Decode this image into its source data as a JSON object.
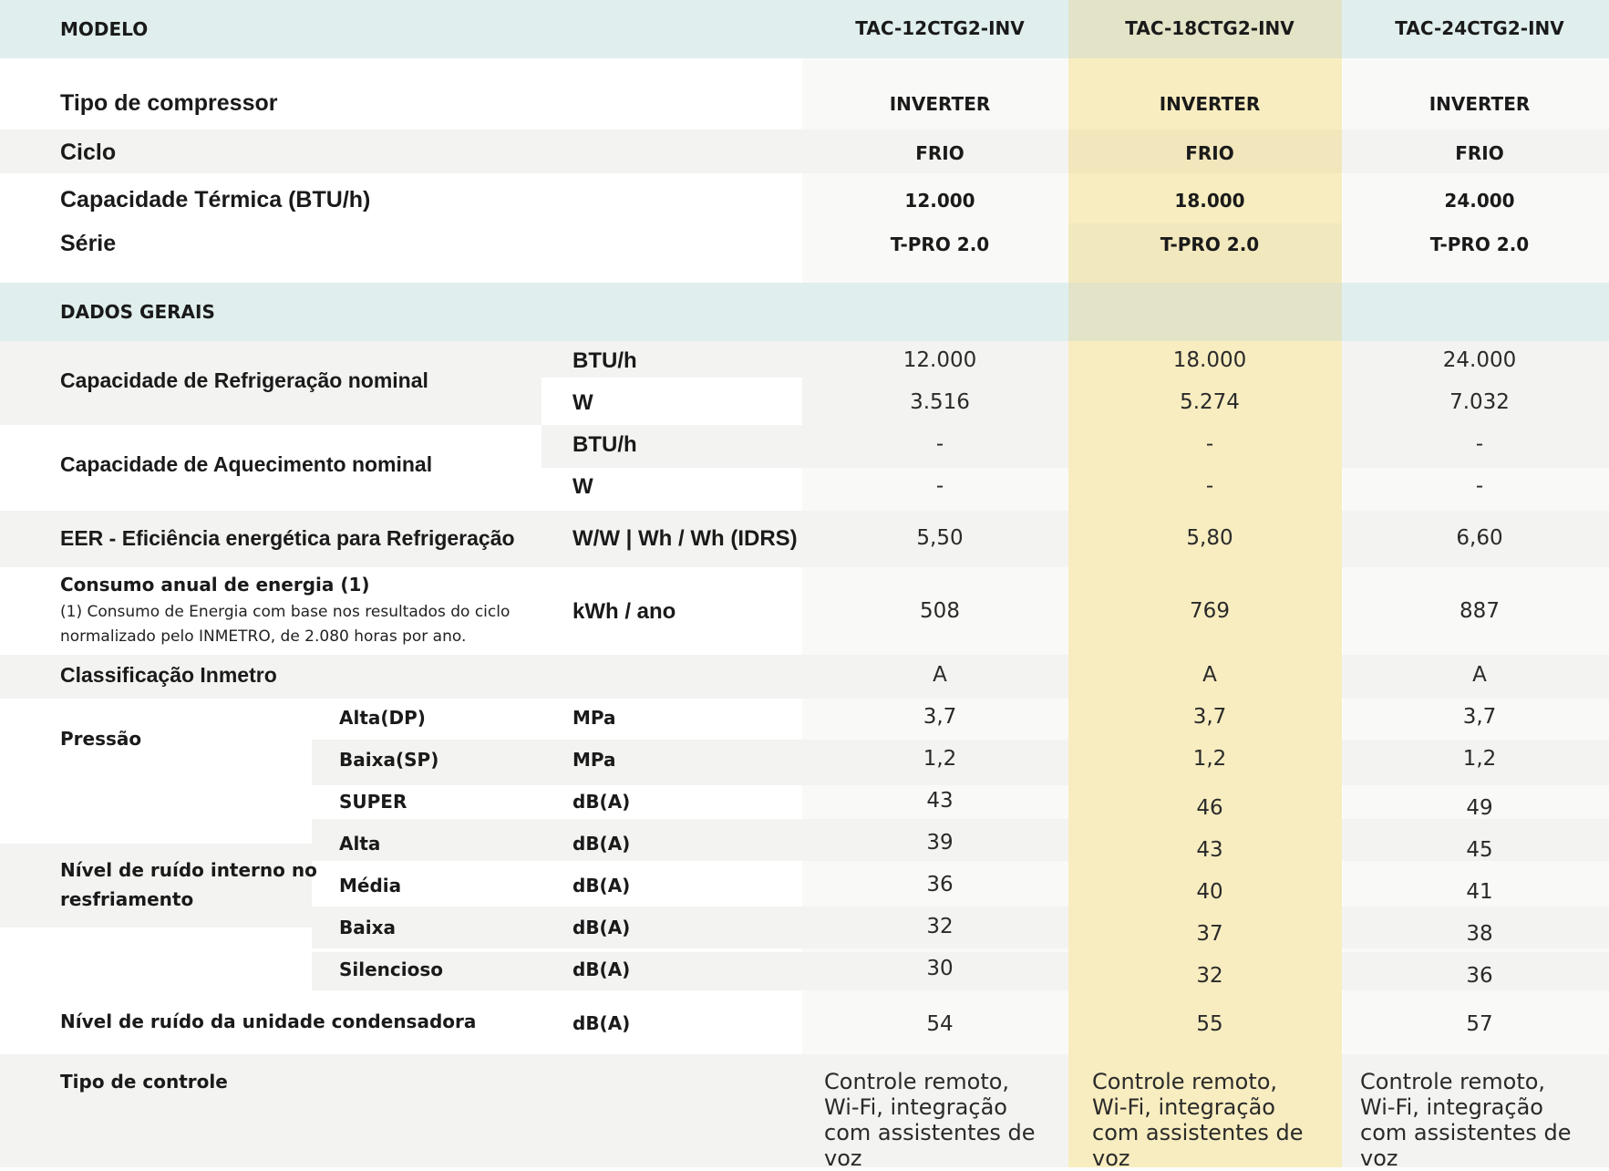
{
  "header": {
    "label": "MODELO",
    "models": [
      "TAC-12CTG2-INV",
      "TAC-18CTG2-INV",
      "TAC-24CTG2-INV"
    ]
  },
  "summary": [
    {
      "label": "Tipo de compressor",
      "values": [
        "INVERTER",
        "INVERTER",
        "INVERTER"
      ]
    },
    {
      "label": "Ciclo",
      "values": [
        "FRIO",
        "FRIO",
        "FRIO"
      ]
    },
    {
      "label": "Capacidade Térmica (BTU/h)",
      "values": [
        "12.000",
        "18.000",
        "24.000"
      ]
    },
    {
      "label": "Série",
      "values": [
        "T-PRO 2.0",
        "T-PRO 2.0",
        "T-PRO 2.0"
      ]
    }
  ],
  "section_title": "DADOS GERAIS",
  "refrigeracao": {
    "label": "Capacidade de Refrigeração nominal",
    "rows": [
      {
        "unit": "BTU/h",
        "values": [
          "12.000",
          "18.000",
          "24.000"
        ]
      },
      {
        "unit": "W",
        "values": [
          "3.516",
          "5.274",
          "7.032"
        ]
      }
    ]
  },
  "aquecimento": {
    "label": "Capacidade de Aquecimento nominal",
    "rows": [
      {
        "unit": "BTU/h",
        "values": [
          "-",
          "-",
          "-"
        ]
      },
      {
        "unit": "W",
        "values": [
          "-",
          "-",
          "-"
        ]
      }
    ]
  },
  "eer": {
    "label": "EER - Eficiência energética para Refrigeração",
    "unit": "W/W | Wh / Wh (IDRS)",
    "values": [
      "5,50",
      "5,80",
      "6,60"
    ]
  },
  "consumo": {
    "label": "Consumo anual de energia (1)",
    "note_line1": "(1) Consumo de Energia com base nos resultados do ciclo",
    "note_line2": "normalizado pelo INMETRO, de 2.080 horas por ano.",
    "unit": "kWh / ano",
    "values": [
      "508",
      "769",
      "887"
    ]
  },
  "inmetro": {
    "label": "Classificação Inmetro",
    "values": [
      "A",
      "A",
      "A"
    ]
  },
  "pressao": {
    "label": "Pressão",
    "rows": [
      {
        "sub": "Alta(DP)",
        "unit": "MPa",
        "values": [
          "3,7",
          "3,7",
          "3,7"
        ]
      },
      {
        "sub": "Baixa(SP)",
        "unit": "MPa",
        "values": [
          "1,2",
          "1,2",
          "1,2"
        ]
      }
    ]
  },
  "ruido_interno": {
    "label_line1": "Nível de ruído interno no",
    "label_line2": "resfriamento",
    "rows": [
      {
        "sub": "SUPER",
        "unit": "dB(A)",
        "values": [
          "43",
          "46",
          "49"
        ]
      },
      {
        "sub": "Alta",
        "unit": "dB(A)",
        "values": [
          "39",
          "43",
          "45"
        ]
      },
      {
        "sub": "Média",
        "unit": "dB(A)",
        "values": [
          "36",
          "40",
          "41"
        ]
      },
      {
        "sub": "Baixa",
        "unit": "dB(A)",
        "values": [
          "32",
          "37",
          "38"
        ]
      },
      {
        "sub": "Silencioso",
        "unit": "dB(A)",
        "values": [
          "30",
          "32",
          "36"
        ]
      }
    ]
  },
  "ruido_condensadora": {
    "label": "Nível de ruído da unidade condensadora",
    "unit": "dB(A)",
    "values": [
      "54",
      "55",
      "57"
    ]
  },
  "controle": {
    "label": "Tipo de controle",
    "values": [
      [
        "Controle remoto,",
        "Wi-Fi, integração",
        "com assistentes de voz"
      ],
      [
        "Controle remoto,",
        "Wi-Fi, integração",
        "com assistentes de voz"
      ],
      [
        "Controle remoto,",
        "Wi-Fi, integração",
        "com assistentes de voz"
      ]
    ]
  },
  "colors": {
    "header_teal": "#e0efee",
    "highlight_col": "#f8edc0",
    "highlight_header": "#e3e3c8",
    "stripe": "#f4f4f2",
    "right_col_bg": "#f8f8f6"
  }
}
